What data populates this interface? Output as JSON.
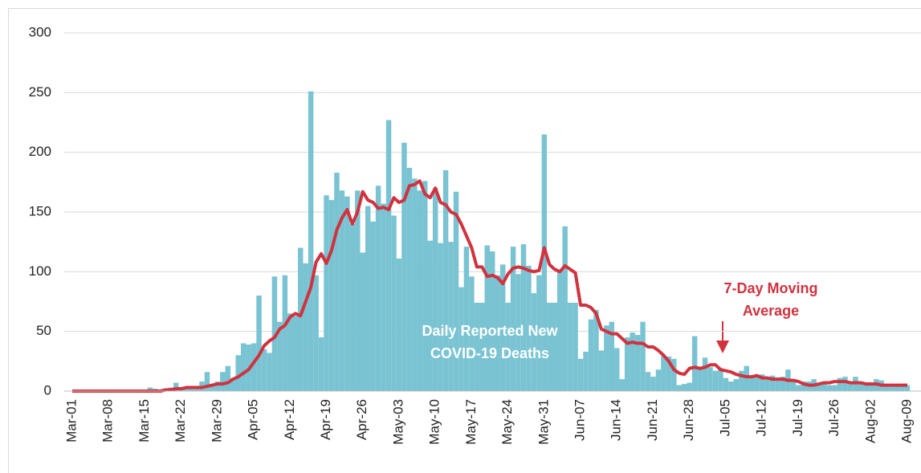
{
  "chart_data": {
    "type": "bar-line",
    "categories": [
      "Mar-01",
      null,
      null,
      null,
      null,
      null,
      null,
      "Mar-08",
      null,
      null,
      null,
      null,
      null,
      null,
      "Mar-15",
      null,
      null,
      null,
      null,
      null,
      null,
      "Mar-22",
      null,
      null,
      null,
      null,
      null,
      null,
      "Mar-29",
      null,
      null,
      null,
      null,
      null,
      null,
      "Apr-05",
      null,
      null,
      null,
      null,
      null,
      null,
      "Apr-12",
      null,
      null,
      null,
      null,
      null,
      null,
      "Apr-19",
      null,
      null,
      null,
      null,
      null,
      null,
      "Apr-26",
      null,
      null,
      null,
      null,
      null,
      null,
      "May-03",
      null,
      null,
      null,
      null,
      null,
      null,
      "May-10",
      null,
      null,
      null,
      null,
      null,
      null,
      "May-17",
      null,
      null,
      null,
      null,
      null,
      null,
      "May-24",
      null,
      null,
      null,
      null,
      null,
      null,
      "May-31",
      null,
      null,
      null,
      null,
      null,
      null,
      "Jun-07",
      null,
      null,
      null,
      null,
      null,
      null,
      "Jun-14",
      null,
      null,
      null,
      null,
      null,
      null,
      "Jun-21",
      null,
      null,
      null,
      null,
      null,
      null,
      "Jun-28",
      null,
      null,
      null,
      null,
      null,
      null,
      "Jul-05",
      null,
      null,
      null,
      null,
      null,
      null,
      "Jul-12",
      null,
      null,
      null,
      null,
      null,
      null,
      "Jul-19",
      null,
      null,
      null,
      null,
      null,
      null,
      "Jul-26",
      null,
      null,
      null,
      null,
      null,
      null,
      "Aug-02",
      null,
      null,
      null,
      null,
      null,
      null,
      "Aug-09"
    ],
    "series": [
      {
        "kind": "bar",
        "color": "#79c3d2",
        "values": [
          0,
          0,
          0,
          0,
          0,
          0,
          0,
          0,
          0,
          0,
          0,
          1,
          0,
          1,
          1,
          3,
          2,
          1,
          2,
          3,
          7,
          3,
          2,
          4,
          3,
          8,
          16,
          6,
          8,
          16,
          21,
          11,
          30,
          40,
          39,
          40,
          80,
          35,
          32,
          96,
          58,
          97,
          65,
          63,
          120,
          107,
          251,
          97,
          45,
          164,
          160,
          183,
          168,
          163,
          140,
          168,
          116,
          155,
          142,
          172,
          157,
          227,
          147,
          111,
          208,
          187,
          178,
          168,
          176,
          126,
          170,
          124,
          185,
          125,
          167,
          87,
          121,
          96,
          74,
          74,
          122,
          117,
          97,
          106,
          74,
          121,
          98,
          123,
          105,
          82,
          97,
          215,
          74,
          74,
          101,
          138,
          74,
          74,
          27,
          33,
          60,
          68,
          34,
          55,
          58,
          36,
          10,
          45,
          49,
          47,
          58,
          16,
          12,
          18,
          30,
          29,
          27,
          5,
          6,
          7,
          46,
          19,
          28,
          20,
          17,
          18,
          11,
          8,
          10,
          17,
          21,
          13,
          12,
          14,
          10,
          13,
          11,
          12,
          18,
          10,
          5,
          8,
          8,
          10,
          7,
          6,
          5,
          5,
          11,
          12,
          7,
          12,
          8,
          7,
          6,
          10,
          9,
          5,
          6,
          6,
          5,
          5
        ]
      },
      {
        "kind": "line",
        "color": "#d1323e",
        "values": [
          0,
          0,
          0,
          0,
          0,
          0,
          0,
          0,
          0,
          0,
          0,
          0,
          0,
          0,
          0,
          0,
          0,
          0,
          1,
          1,
          2,
          2,
          3,
          3,
          3,
          3,
          4,
          5,
          6,
          6,
          7,
          10,
          12,
          15,
          18,
          24,
          30,
          38,
          42,
          45,
          52,
          55,
          62,
          65,
          63,
          75,
          87,
          108,
          115,
          107,
          118,
          135,
          145,
          152,
          140,
          150,
          167,
          160,
          158,
          153,
          154,
          152,
          162,
          158,
          160,
          172,
          173,
          176,
          165,
          162,
          170,
          158,
          156,
          150,
          148,
          140,
          130,
          120,
          104,
          104,
          96,
          97,
          95,
          90,
          98,
          103,
          104,
          103,
          101,
          100,
          101,
          120,
          106,
          102,
          100,
          105,
          102,
          99,
          72,
          72,
          70,
          65,
          52,
          50,
          48,
          48,
          44,
          40,
          41,
          40,
          40,
          37,
          37,
          34,
          30,
          25,
          18,
          15,
          14,
          19,
          20,
          19,
          20,
          22,
          22,
          18,
          17,
          16,
          14,
          13,
          12,
          12,
          13,
          11,
          11,
          10,
          10,
          10,
          9,
          9,
          8,
          6,
          5,
          5,
          6,
          7,
          7,
          8,
          8,
          8,
          7,
          7,
          7,
          6,
          6,
          6,
          5,
          5,
          5,
          5,
          5,
          5
        ]
      }
    ],
    "ylim": [
      0,
      300
    ],
    "yticks": [
      0,
      50,
      100,
      150,
      200,
      250,
      300
    ],
    "grid": true,
    "annotations": [
      {
        "lines": [
          "7-Day Moving",
          "Average"
        ],
        "color": "#d1323e"
      },
      {
        "lines": [
          "Daily Reported New",
          "COVID-19 Deaths"
        ],
        "color": "#ffffff"
      }
    ]
  }
}
